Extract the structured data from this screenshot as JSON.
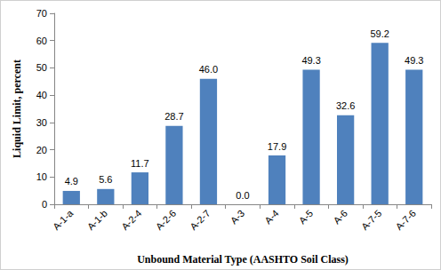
{
  "chart_data": {
    "type": "bar",
    "x_label": "Unbound Material Type (AASHTO Soil Class)",
    "y_label": "Liquid Limit, percent",
    "categories": [
      "A-1-a",
      "A-1-b",
      "A-2-4",
      "A-2-6",
      "A-2-7",
      "A-3",
      "A-4",
      "A-5",
      "A-6",
      "A-7-5",
      "A-7-6"
    ],
    "values": [
      4.9,
      5.6,
      11.7,
      28.7,
      46.0,
      0.0,
      17.9,
      49.3,
      32.6,
      59.2,
      49.3
    ],
    "value_labels": [
      "4.9",
      "5.6",
      "11.7",
      "28.7",
      "46.0",
      "0.0",
      "17.9",
      "49.3",
      "32.6",
      "59.2",
      "49.3"
    ],
    "color": "#4f81bd",
    "ylim": [
      0,
      70
    ],
    "yticks": [
      0,
      10,
      20,
      30,
      40,
      50,
      60,
      70
    ],
    "grid": false,
    "data_labels": true
  }
}
